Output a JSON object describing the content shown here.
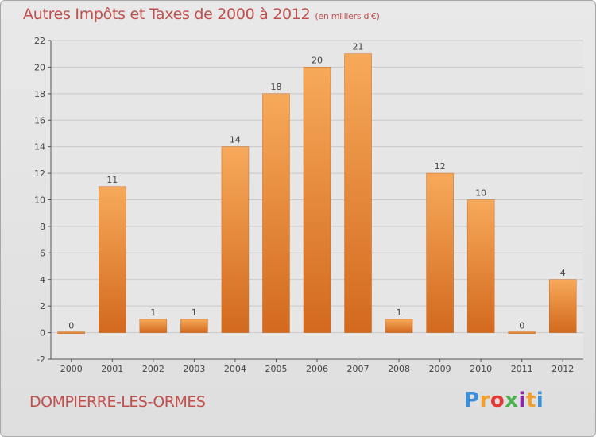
{
  "header": {
    "title": "Autres Impôts et Taxes de 2000 à 2012",
    "unit": "(en milliers d'€)"
  },
  "footer": {
    "commune": "DOMPIERRE-LES-ORMES",
    "brand_letters": [
      "P",
      "r",
      "o",
      "x",
      "i",
      "t",
      "i"
    ],
    "brand_colors": [
      "#3a8fd8",
      "#f0a030",
      "#e53935",
      "#4caf50",
      "#8e24aa",
      "#f0a030",
      "#3a8fd8"
    ]
  },
  "colors": {
    "title": "#c0504d",
    "bar_light": "#f7a95a",
    "bar_dark": "#d2691e",
    "grid": "#c8c8c8"
  },
  "chart_data": {
    "type": "bar",
    "categories": [
      "2000",
      "2001",
      "2002",
      "2003",
      "2004",
      "2005",
      "2006",
      "2007",
      "2008",
      "2009",
      "2010",
      "2011",
      "2012"
    ],
    "values": [
      0,
      11,
      1,
      1,
      14,
      18,
      20,
      21,
      1,
      12,
      10,
      0,
      4
    ],
    "data_labels": [
      "0",
      "11",
      "1",
      "1",
      "14",
      "18",
      "20",
      "21",
      "1",
      "12",
      "10",
      "0",
      "4"
    ],
    "title": "Autres Impôts et Taxes de 2000 à 2012",
    "xlabel": "",
    "ylabel": "",
    "ylim": [
      -2,
      22
    ],
    "yticks": [
      -2,
      0,
      2,
      4,
      6,
      8,
      10,
      12,
      14,
      16,
      18,
      20,
      22
    ],
    "grid": true
  }
}
